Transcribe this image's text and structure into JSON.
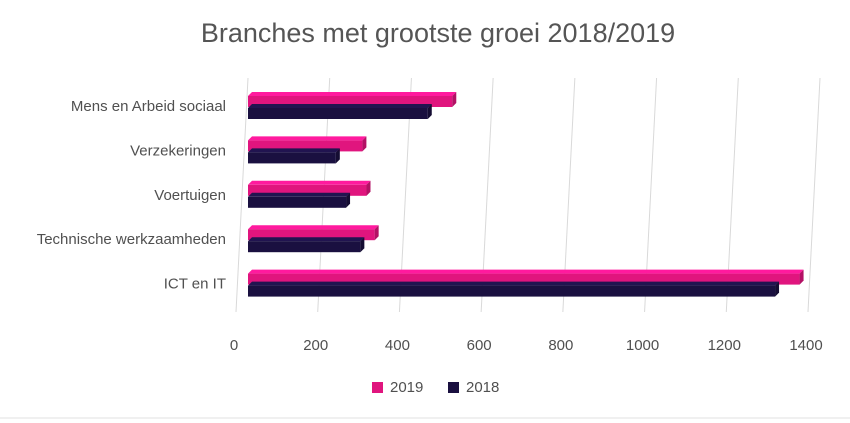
{
  "chart_data": {
    "type": "bar",
    "orientation": "horizontal",
    "title": "Branches met grootste groei 2018/2019",
    "categories": [
      "Mens en Arbeid sociaal",
      "Verzekeringen",
      "Voertuigen",
      "Technische werkzaamheden",
      "ICT en IT"
    ],
    "series": [
      {
        "name": "2019",
        "color": "#e0157e",
        "values": [
          500,
          280,
          290,
          310,
          1350
        ]
      },
      {
        "name": "2018",
        "color": "#1a1040",
        "values": [
          440,
          215,
          240,
          275,
          1290
        ]
      }
    ],
    "xlim": [
      0,
      1400
    ],
    "xticks": [
      0,
      200,
      400,
      600,
      800,
      1000,
      1200,
      1400
    ],
    "grid": true,
    "legend_position": "bottom",
    "style": "3d-bars"
  }
}
